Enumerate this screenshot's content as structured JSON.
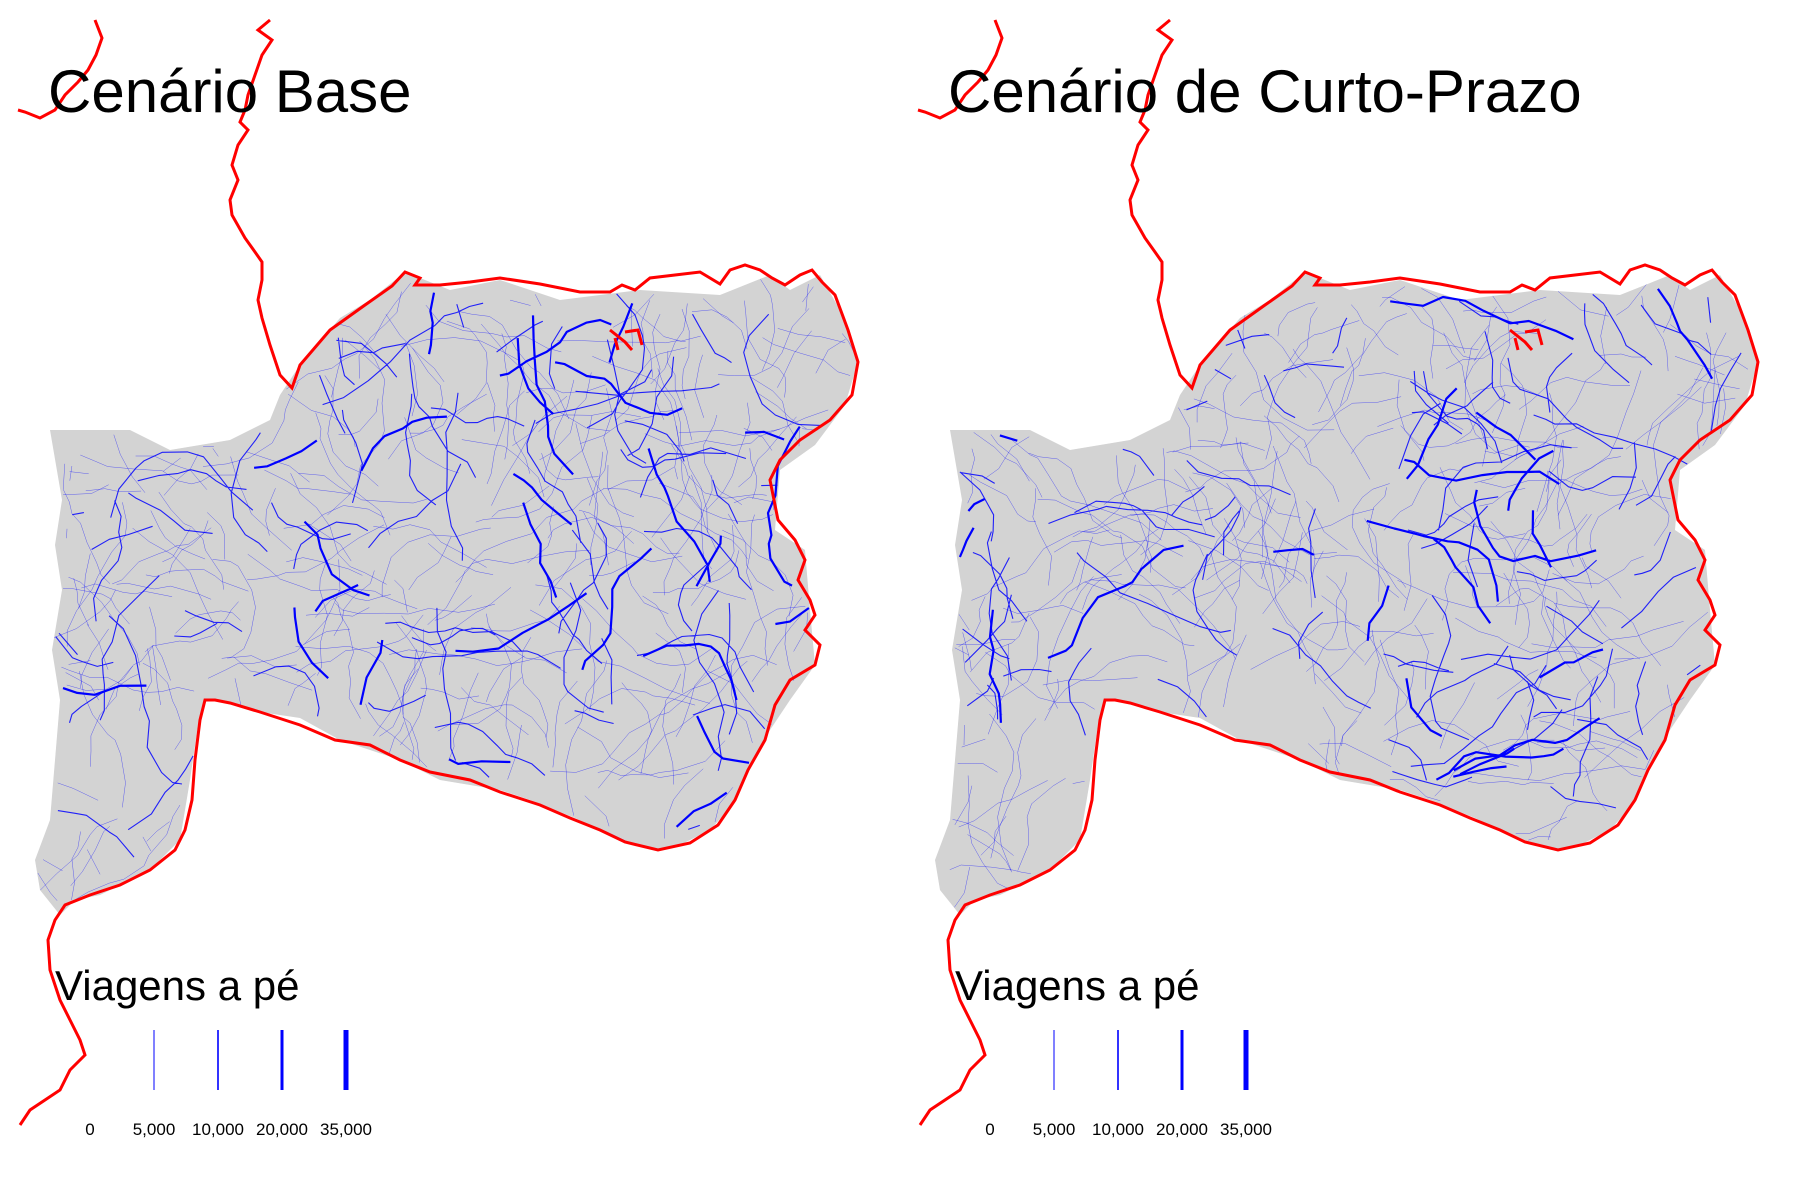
{
  "panels": [
    {
      "title": "Cenário Base",
      "legend": {
        "title": "Viagens a pé",
        "breaks": [
          "0",
          "5,000",
          "10,000",
          "20,000",
          "35,000"
        ]
      }
    },
    {
      "title": "Cenário de Curto-Prazo",
      "legend": {
        "title": "Viagens a pé",
        "breaks": [
          "0",
          "5,000",
          "10,000",
          "20,000",
          "35,000"
        ]
      }
    }
  ],
  "colors": {
    "boundary": "#ff0000",
    "region_fill": "#d3d3d3",
    "flow_lines": "#0000ff",
    "background": "#ffffff"
  }
}
